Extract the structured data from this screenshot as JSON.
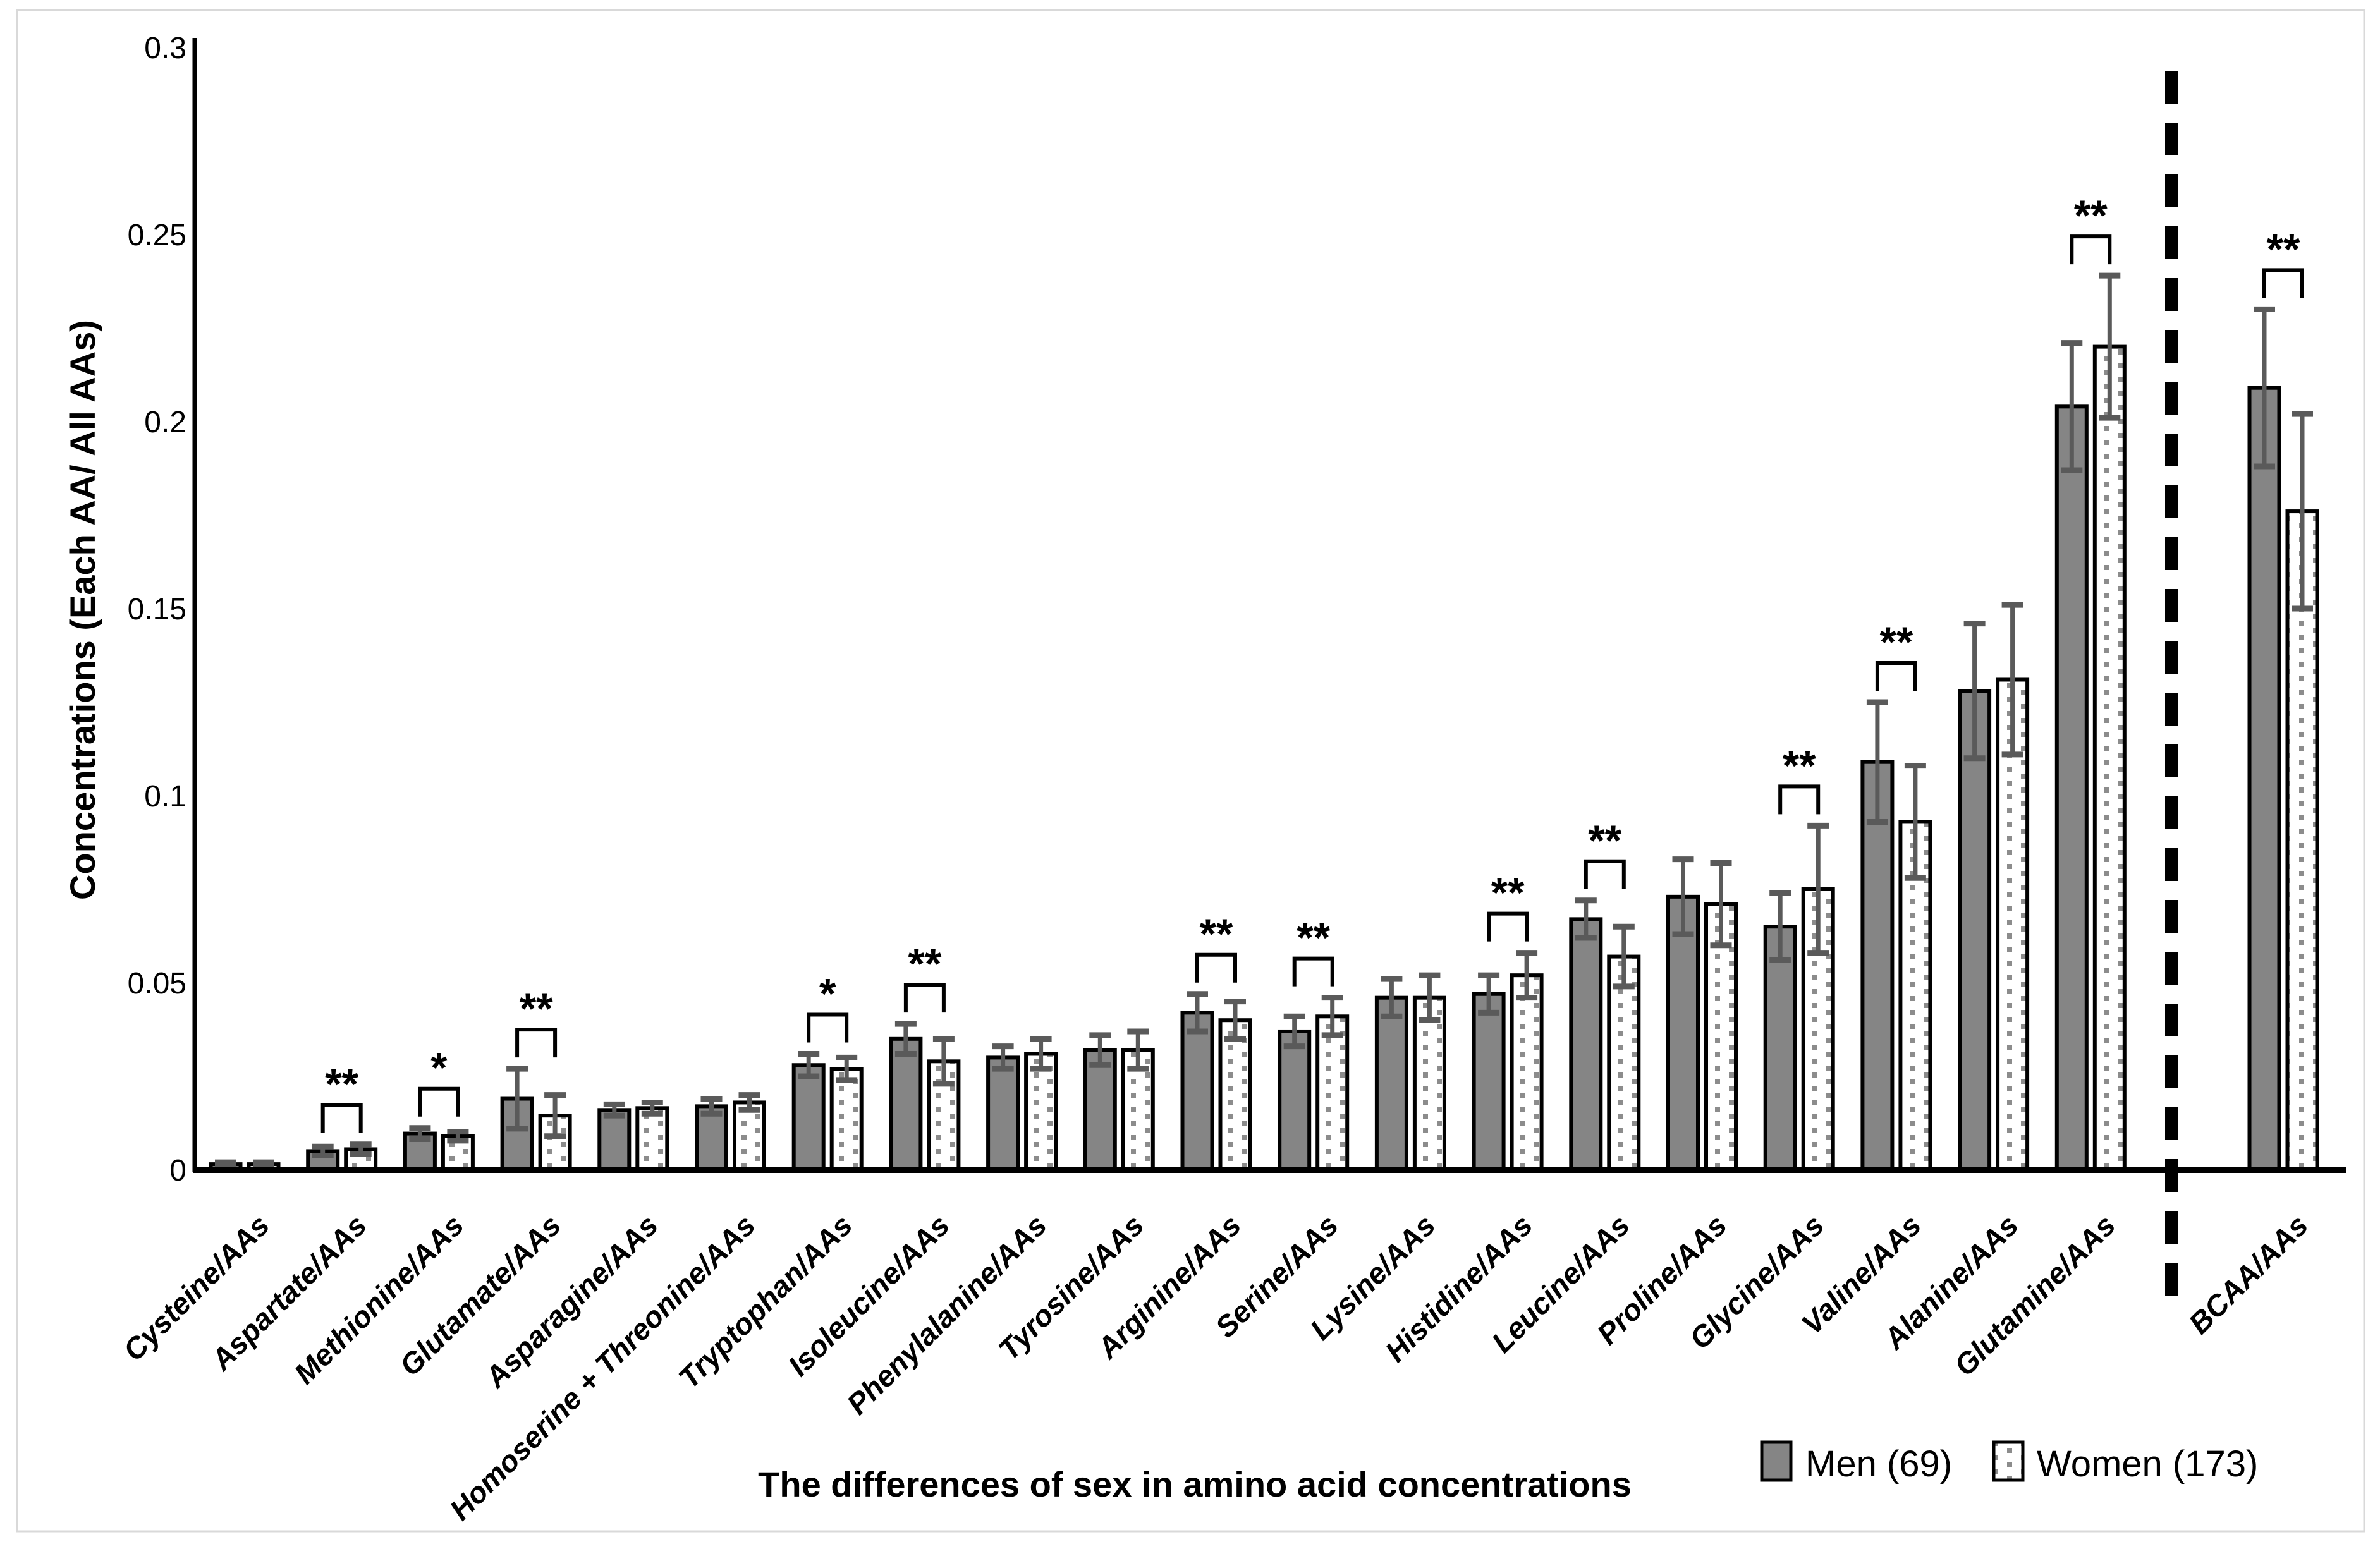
{
  "chart_data": {
    "type": "bar",
    "xlabel": "The differences of sex  in amino acid concentrations",
    "ylabel": "Concentrations (Each AA/ All AAs)",
    "ylim": [
      0,
      0.3
    ],
    "ytick_labels": [
      "0",
      "0.05",
      "0.1",
      "0.15",
      "0.2",
      "0.25",
      "0.3"
    ],
    "grid": false,
    "legend_position": "bottom-right",
    "legend": [
      {
        "label": "Men (69)"
      },
      {
        "label": "Women (173)"
      }
    ],
    "series_names": [
      "Men (69)",
      "Women (173)"
    ],
    "categories": [
      {
        "label": "Cysteine/AAs",
        "men": 0.0015,
        "men_err": 0.0005,
        "women": 0.0015,
        "women_err": 0.0005,
        "sig": null
      },
      {
        "label": "Aspartate/AAs",
        "men": 0.005,
        "men_err": 0.0012,
        "women": 0.0055,
        "women_err": 0.0013,
        "sig": "**"
      },
      {
        "label": "Methionine/AAs",
        "men": 0.0097,
        "men_err": 0.0015,
        "women": 0.009,
        "women_err": 0.0012,
        "sig": "*"
      },
      {
        "label": "Glutamate/AAs",
        "men": 0.019,
        "men_err": 0.008,
        "women": 0.0145,
        "women_err": 0.0055,
        "sig": "**"
      },
      {
        "label": "Asparagine/AAs",
        "men": 0.016,
        "men_err": 0.0015,
        "women": 0.0165,
        "women_err": 0.0015,
        "sig": null
      },
      {
        "label": "Homoserine + Threonine/AAs",
        "men": 0.017,
        "men_err": 0.002,
        "women": 0.018,
        "women_err": 0.002,
        "sig": null
      },
      {
        "label": "Tryptophan/AAs",
        "men": 0.028,
        "men_err": 0.003,
        "women": 0.027,
        "women_err": 0.003,
        "sig": "*"
      },
      {
        "label": "Isoleucine/AAs",
        "men": 0.035,
        "men_err": 0.004,
        "women": 0.029,
        "women_err": 0.006,
        "sig": "**"
      },
      {
        "label": "Phenylalanine/AAs",
        "men": 0.03,
        "men_err": 0.003,
        "women": 0.031,
        "women_err": 0.004,
        "sig": null
      },
      {
        "label": "Tyrosine/AAs",
        "men": 0.032,
        "men_err": 0.004,
        "women": 0.032,
        "women_err": 0.005,
        "sig": null
      },
      {
        "label": "Arginine/AAs",
        "men": 0.042,
        "men_err": 0.005,
        "women": 0.04,
        "women_err": 0.005,
        "sig": "**"
      },
      {
        "label": "Serine/AAs",
        "men": 0.037,
        "men_err": 0.004,
        "women": 0.041,
        "women_err": 0.005,
        "sig": "**"
      },
      {
        "label": "Lysine/AAs",
        "men": 0.046,
        "men_err": 0.005,
        "women": 0.046,
        "women_err": 0.006,
        "sig": null
      },
      {
        "label": "Histidine/AAs",
        "men": 0.047,
        "men_err": 0.005,
        "women": 0.052,
        "women_err": 0.006,
        "sig": "**"
      },
      {
        "label": "Leucine/AAs",
        "men": 0.067,
        "men_err": 0.005,
        "women": 0.057,
        "women_err": 0.008,
        "sig": "**"
      },
      {
        "label": "Proline/AAs",
        "men": 0.073,
        "men_err": 0.01,
        "women": 0.071,
        "women_err": 0.011,
        "sig": null
      },
      {
        "label": "Glycine/AAs",
        "men": 0.065,
        "men_err": 0.009,
        "women": 0.075,
        "women_err": 0.017,
        "sig": "**"
      },
      {
        "label": "Valine/AAs",
        "men": 0.109,
        "men_err": 0.016,
        "women": 0.093,
        "women_err": 0.015,
        "sig": "**"
      },
      {
        "label": "Alanine/AAs",
        "men": 0.128,
        "men_err": 0.018,
        "women": 0.131,
        "women_err": 0.02,
        "sig": null
      },
      {
        "label": "Glutamine/AAs",
        "men": 0.204,
        "men_err": 0.017,
        "women": 0.22,
        "women_err": 0.019,
        "sig": "**"
      },
      {
        "label": "BCAA/AAs",
        "men": 0.209,
        "men_err": 0.021,
        "women": 0.176,
        "women_err": 0.026,
        "sig": "**",
        "separated": true
      }
    ],
    "separator": {
      "style": "dashed-vertical",
      "between": [
        "Glutamine/AAs",
        "BCAA/AAs"
      ]
    },
    "colors": {
      "men_fill": "#858585",
      "women_fill": "#ffffff",
      "women_dot": "#8c8c8c",
      "bar_stroke": "#000000",
      "error_bar": "#5a5a5a",
      "axis": "#000000",
      "figure_border": "#d9d9d9",
      "background": "#ffffff"
    }
  }
}
